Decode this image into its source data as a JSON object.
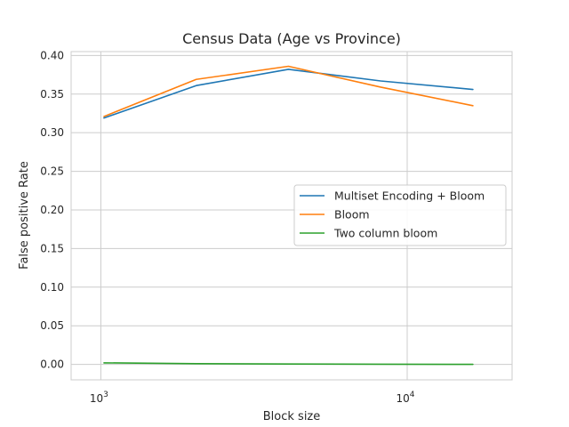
{
  "chart_data": {
    "type": "line",
    "title": "Census Data (Age vs Province)",
    "xlabel": "Block size",
    "ylabel": "False positive Rate",
    "xscale": "log",
    "xlim": [
      800,
      22000
    ],
    "ylim": [
      -0.02,
      0.405
    ],
    "x": [
      1024,
      2048,
      4096,
      8192,
      16384
    ],
    "xticks": [
      {
        "value": 1000,
        "base": "10",
        "exp": "3"
      },
      {
        "value": 10000,
        "base": "10",
        "exp": "4"
      }
    ],
    "yticks": [
      0.0,
      0.05,
      0.1,
      0.15,
      0.2,
      0.25,
      0.3,
      0.35,
      0.4
    ],
    "ytick_labels": [
      "0.00",
      "0.05",
      "0.10",
      "0.15",
      "0.20",
      "0.25",
      "0.30",
      "0.35",
      "0.40"
    ],
    "grid": true,
    "legend_position": "center-right",
    "series": [
      {
        "name": "Multiset Encoding + Bloom",
        "color": "#1f77b4",
        "values": [
          0.319,
          0.361,
          0.382,
          0.367,
          0.356
        ]
      },
      {
        "name": "Bloom",
        "color": "#ff7f0e",
        "values": [
          0.321,
          0.369,
          0.386,
          0.359,
          0.335
        ]
      },
      {
        "name": "Two column bloom",
        "color": "#2ca02c",
        "values": [
          0.002,
          0.001,
          0.0005,
          0.0002,
          0.0001
        ]
      }
    ]
  }
}
